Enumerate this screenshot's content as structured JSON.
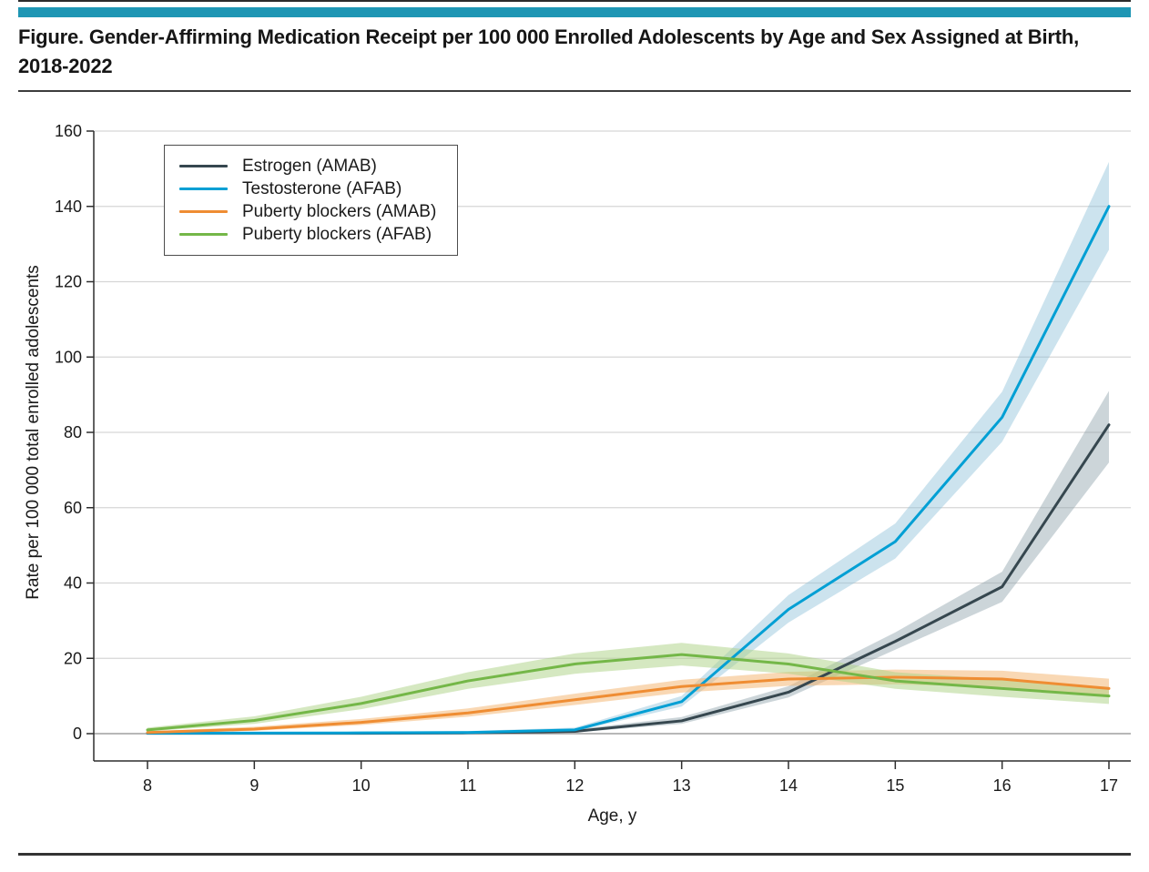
{
  "page": {
    "title": "Figure. Gender-Affirming Medication Receipt per 100 000 Enrolled Adolescents by Age and Sex Assigned at Birth, 2018-2022",
    "accent_color": "#1e96b4"
  },
  "chart_data": {
    "type": "line",
    "x": [
      8,
      9,
      10,
      11,
      12,
      13,
      14,
      15,
      16,
      17
    ],
    "xlabel": "Age, y",
    "ylabel": "Rate per 100 000 total enrolled adolescents",
    "ylim": [
      0,
      160
    ],
    "y_ticks": [
      0,
      20,
      40,
      60,
      80,
      100,
      120,
      140,
      160
    ],
    "grid": "horizontal",
    "legend_position": "top-left-inside",
    "series": [
      {
        "name": "Estrogen (AMAB)",
        "color": "#36474f",
        "band_color": "#8fa2aa",
        "band_opacity": 0.45,
        "values": [
          0.1,
          0.1,
          0.1,
          0.2,
          0.6,
          3.4,
          11,
          24.5,
          39,
          82
        ],
        "ci_lower": [
          0,
          0,
          0,
          0.05,
          0.3,
          2.6,
          9.6,
          22.3,
          35,
          72
        ],
        "ci_upper": [
          0.3,
          0.3,
          0.35,
          0.5,
          1.1,
          4.4,
          12.6,
          26.9,
          43,
          91
        ]
      },
      {
        "name": "Testosterone (AFAB)",
        "color": "#009fd4",
        "band_color": "#8ec2da",
        "band_opacity": 0.45,
        "values": [
          0.15,
          0.15,
          0.2,
          0.3,
          1,
          8.5,
          33,
          51,
          84,
          140
        ],
        "ci_lower": [
          0,
          0,
          0.05,
          0.1,
          0.6,
          7.2,
          29.5,
          46.5,
          77.5,
          128.5
        ],
        "ci_upper": [
          0.4,
          0.4,
          0.5,
          0.7,
          1.6,
          10,
          36.8,
          55.8,
          90.8,
          151.8
        ]
      },
      {
        "name": "Puberty blockers (AMAB)",
        "color": "#ef8d33",
        "band_color": "#f3b269",
        "band_opacity": 0.5,
        "values": [
          0.3,
          1.2,
          3,
          5.5,
          9,
          12.5,
          14.5,
          15,
          14.5,
          12
        ],
        "ci_lower": [
          0.15,
          0.75,
          2.3,
          4.5,
          7.6,
          10.9,
          12.7,
          13.1,
          12.4,
          9.7
        ],
        "ci_upper": [
          0.6,
          1.85,
          3.9,
          6.7,
          10.6,
          14.3,
          16.4,
          17,
          16.7,
          14.6
        ]
      },
      {
        "name": "Puberty blockers (AFAB)",
        "color": "#74b748",
        "band_color": "#abd284",
        "band_opacity": 0.5,
        "values": [
          1,
          3.5,
          8,
          14,
          18.5,
          21,
          18.5,
          14,
          12,
          10
        ],
        "ci_lower": [
          0.6,
          2.6,
          6.5,
          11.9,
          15.9,
          18.1,
          15.9,
          11.9,
          9.8,
          7.9
        ],
        "ci_upper": [
          1.6,
          4.6,
          9.8,
          16.3,
          21.3,
          24.1,
          21.3,
          16.3,
          14.4,
          12.4
        ]
      }
    ]
  }
}
